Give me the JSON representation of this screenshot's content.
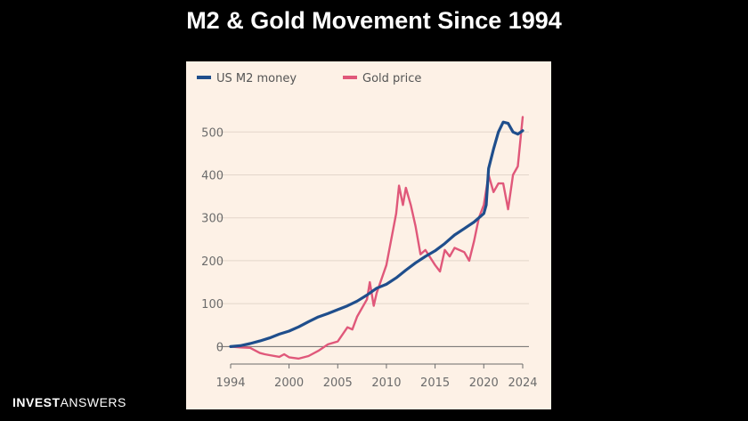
{
  "slide": {
    "title": "M2 & Gold Movement Since 1994"
  },
  "brand": {
    "part1": "INVEST",
    "part2": "ANSWERS"
  },
  "chart_data": {
    "type": "line",
    "legend_position": "top-left",
    "grid": "horizontal",
    "xlim": [
      1994,
      2024
    ],
    "ylim": [
      -20,
      540
    ],
    "x_ticks": [
      1994,
      2000,
      2005,
      2010,
      2015,
      2020,
      2024
    ],
    "y_ticks": [
      0,
      100,
      200,
      300,
      400,
      500
    ],
    "series": [
      {
        "name": "US M2 money",
        "color": "#1f4e8c",
        "x": [
          1994,
          1995,
          1996,
          1997,
          1998,
          1999,
          2000,
          2001,
          2002,
          2003,
          2004,
          2005,
          2006,
          2007,
          2008,
          2009,
          2010,
          2011,
          2012,
          2013,
          2014,
          2015,
          2016,
          2017,
          2018,
          2019,
          2020,
          2020.25,
          2020.5,
          2021,
          2021.5,
          2022,
          2022.5,
          2023,
          2023.5,
          2024
        ],
        "values": [
          0,
          2,
          7,
          13,
          20,
          29,
          36,
          46,
          58,
          69,
          77,
          86,
          95,
          106,
          120,
          136,
          145,
          160,
          178,
          195,
          210,
          223,
          240,
          260,
          275,
          290,
          310,
          330,
          415,
          460,
          500,
          523,
          520,
          500,
          495,
          503
        ]
      },
      {
        "name": "Gold price",
        "color": "#e0587a",
        "x": [
          1994,
          1995,
          1996,
          1997,
          1997.5,
          1998,
          1999,
          1999.5,
          2000,
          2001,
          2002,
          2003,
          2004,
          2005,
          2006,
          2006.5,
          2007,
          2008,
          2008.3,
          2008.7,
          2009,
          2010,
          2011,
          2011.3,
          2011.7,
          2012,
          2012.5,
          2013,
          2013.5,
          2014,
          2015,
          2015.5,
          2016,
          2016.5,
          2017,
          2018,
          2018.5,
          2019,
          2019.5,
          2020,
          2020.5,
          2021,
          2021.5,
          2022,
          2022.5,
          2023,
          2023.5,
          2024
        ],
        "values": [
          0,
          -2,
          -3,
          -15,
          -18,
          -20,
          -24,
          -18,
          -25,
          -28,
          -22,
          -10,
          5,
          12,
          45,
          40,
          70,
          110,
          150,
          95,
          125,
          190,
          310,
          375,
          330,
          370,
          330,
          280,
          215,
          225,
          190,
          175,
          225,
          210,
          230,
          220,
          200,
          245,
          300,
          330,
          400,
          360,
          380,
          380,
          320,
          400,
          420,
          535
        ]
      }
    ]
  }
}
